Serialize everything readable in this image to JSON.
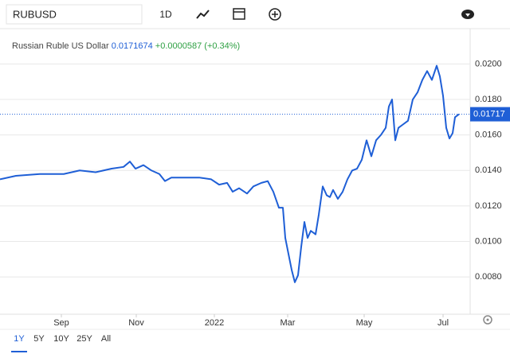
{
  "ui": {
    "symbol": "RUBUSD",
    "interval": "1D",
    "ranges": [
      "1Y",
      "5Y",
      "10Y",
      "25Y",
      "All"
    ]
  },
  "chart_data": {
    "type": "line",
    "title": "Russian Ruble US Dollar",
    "change": "+0.0000587",
    "change_pct": "(+0.34%)",
    "price_line": {
      "value": 0.0171674,
      "label": "0.01717"
    },
    "xlim": [
      0,
      590
    ],
    "xticks": [
      {
        "value": 77,
        "label": "Sep"
      },
      {
        "value": 171,
        "label": "Nov"
      },
      {
        "value": 269,
        "label": "2022"
      },
      {
        "value": 361,
        "label": "Mar"
      },
      {
        "value": 457,
        "label": "May"
      },
      {
        "value": 556,
        "label": "Jul"
      }
    ],
    "ylim": [
      0.0059,
      0.0219
    ],
    "yticks": [
      {
        "value": 0.008,
        "label": "0.0080"
      },
      {
        "value": 0.01,
        "label": "0.0100"
      },
      {
        "value": 0.012,
        "label": "0.0120"
      },
      {
        "value": 0.014,
        "label": "0.0140"
      },
      {
        "value": 0.016,
        "label": "0.0160"
      },
      {
        "value": 0.018,
        "label": "0.0180"
      },
      {
        "value": 0.02,
        "label": "0.0200"
      }
    ],
    "grid": true,
    "series": [
      {
        "name": "RUBUSD",
        "color": "#1f5fd6",
        "x": [
          0,
          20,
          50,
          80,
          100,
          120,
          140,
          155,
          163,
          170,
          180,
          190,
          200,
          207,
          215,
          230,
          250,
          265,
          275,
          285,
          292,
          300,
          310,
          318,
          328,
          336,
          343,
          350,
          355,
          358,
          362,
          366,
          370,
          374,
          378,
          382,
          386,
          390,
          396,
          400,
          405,
          410,
          414,
          418,
          424,
          430,
          436,
          442,
          448,
          454,
          460,
          466,
          472,
          478,
          484,
          488,
          492,
          496,
          500,
          506,
          512,
          518,
          524,
          530,
          536,
          542,
          548,
          552,
          556,
          560,
          564,
          568,
          571,
          576
        ],
        "values": [
          0.0135,
          0.0137,
          0.0138,
          0.0138,
          0.014,
          0.0139,
          0.0141,
          0.0142,
          0.0145,
          0.0141,
          0.0143,
          0.014,
          0.0138,
          0.0134,
          0.0136,
          0.0136,
          0.0136,
          0.0135,
          0.0132,
          0.0133,
          0.0128,
          0.013,
          0.0127,
          0.0131,
          0.0133,
          0.0134,
          0.0128,
          0.0119,
          0.0119,
          0.0102,
          0.0093,
          0.0084,
          0.0077,
          0.0081,
          0.0097,
          0.0111,
          0.0102,
          0.0106,
          0.0104,
          0.0115,
          0.0131,
          0.0126,
          0.0125,
          0.0129,
          0.0124,
          0.0128,
          0.0135,
          0.014,
          0.0141,
          0.0146,
          0.0157,
          0.0148,
          0.0157,
          0.016,
          0.0164,
          0.0176,
          0.018,
          0.0157,
          0.0164,
          0.0166,
          0.0168,
          0.018,
          0.0184,
          0.0191,
          0.0196,
          0.0191,
          0.0199,
          0.0193,
          0.0182,
          0.0164,
          0.0158,
          0.0161,
          0.017,
          0.0171674
        ]
      }
    ]
  }
}
